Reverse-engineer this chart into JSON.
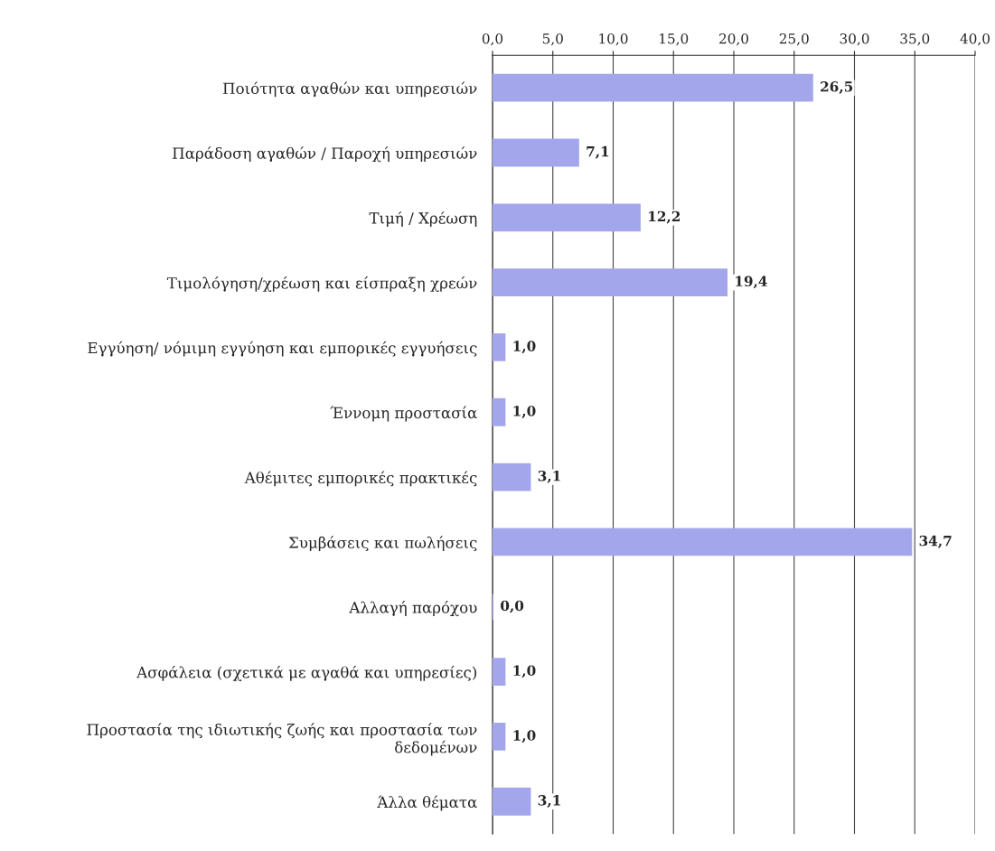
{
  "chart_data": {
    "type": "bar",
    "orientation": "horizontal",
    "categories": [
      "Ποιότητα αγαθών και υπηρεσιών",
      "Παράδοση αγαθών / Παροχή υπηρεσιών",
      "Τιμή / Χρέωση",
      "Τιμολόγηση/χρέωση και είσπραξη χρεών",
      "Εγγύηση/ νόμιμη εγγύηση και εμπορικές εγγυήσεις",
      "Έννομη προστασία",
      "Αθέμιτες εμπορικές πρακτικές",
      "Συμβάσεις και πωλήσεις",
      "Αλλαγή παρόχου",
      "Ασφάλεια (σχετικά με αγαθά και υπηρεσίες)",
      "Προστασία της ιδιωτικής ζωής και προστασία των\nδεδομένων",
      "Άλλα θέματα"
    ],
    "values": [
      26.5,
      7.1,
      12.2,
      19.4,
      1.0,
      1.0,
      3.1,
      34.7,
      0.0,
      1.0,
      1.0,
      3.1
    ],
    "value_labels": [
      "26,5",
      "7,1",
      "12,2",
      "19,4",
      "1,0",
      "1,0",
      "3,1",
      "34,7",
      "0,0",
      "1,0",
      "1,0",
      "3,1"
    ],
    "color": "#a4a6ec",
    "xlim": [
      0,
      40
    ],
    "xticks": [
      {
        "value": 0,
        "label": "0,0"
      },
      {
        "value": 5,
        "label": "5,0"
      },
      {
        "value": 10,
        "label": "10,0"
      },
      {
        "value": 15,
        "label": "15,0"
      },
      {
        "value": 20,
        "label": "20,0"
      },
      {
        "value": 25,
        "label": "25,0"
      },
      {
        "value": 30,
        "label": "30,0"
      },
      {
        "value": 35,
        "label": "35,0"
      },
      {
        "value": 40,
        "label": "40,0"
      }
    ],
    "grid": "x",
    "legend": false
  }
}
